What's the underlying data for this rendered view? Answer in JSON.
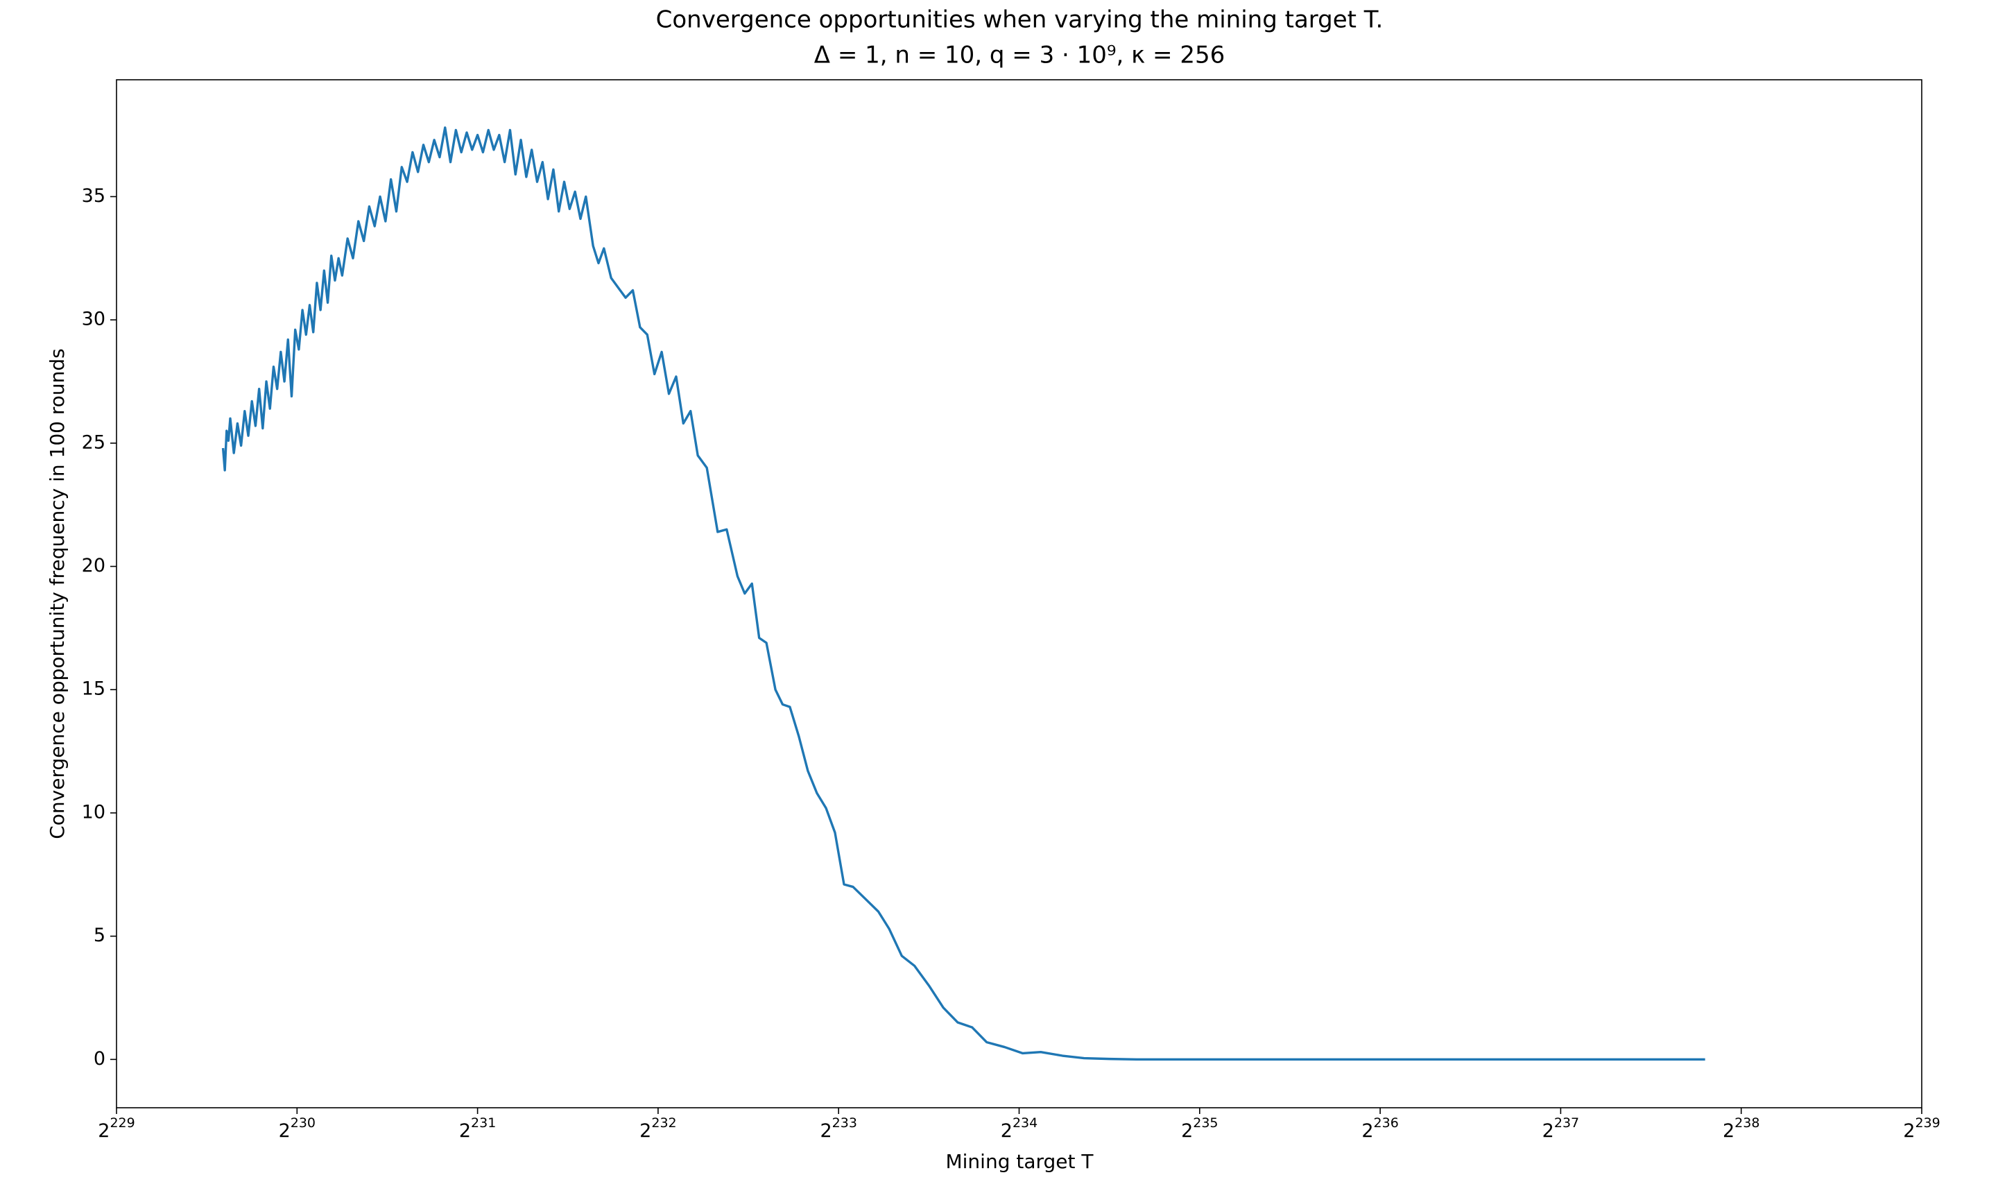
{
  "chart_data": {
    "type": "line",
    "title": "Convergence opportunities when varying the mining target T.",
    "subtitle": "Δ = 1, n = 10, q = 3 · 10⁹, κ = 256",
    "xlabel": "Mining target T",
    "ylabel": "Convergence opportunity frequency in 100 rounds",
    "xscale": "log2",
    "xlim": [
      229,
      239
    ],
    "ylim": [
      -1.96,
      39.74
    ],
    "xticks": [
      {
        "value": 229,
        "label": [
          "2",
          "229"
        ]
      },
      {
        "value": 230,
        "label": [
          "2",
          "230"
        ]
      },
      {
        "value": 231,
        "label": [
          "2",
          "231"
        ]
      },
      {
        "value": 232,
        "label": [
          "2",
          "232"
        ]
      },
      {
        "value": 233,
        "label": [
          "2",
          "233"
        ]
      },
      {
        "value": 234,
        "label": [
          "2",
          "234"
        ]
      },
      {
        "value": 235,
        "label": [
          "2",
          "235"
        ]
      },
      {
        "value": 236,
        "label": [
          "2",
          "236"
        ]
      },
      {
        "value": 237,
        "label": [
          "2",
          "237"
        ]
      },
      {
        "value": 238,
        "label": [
          "2",
          "238"
        ]
      },
      {
        "value": 239,
        "label": [
          "2",
          "239"
        ]
      }
    ],
    "yticks": [
      0,
      5,
      10,
      15,
      20,
      25,
      30,
      35
    ],
    "grid": false,
    "series": [
      {
        "name": "frequency",
        "color": "#1f77b4",
        "x": [
          229.59,
          229.6,
          229.61,
          229.62,
          229.63,
          229.65,
          229.67,
          229.69,
          229.71,
          229.73,
          229.75,
          229.77,
          229.79,
          229.81,
          229.83,
          229.85,
          229.87,
          229.89,
          229.91,
          229.93,
          229.95,
          229.97,
          229.99,
          230.01,
          230.03,
          230.05,
          230.07,
          230.09,
          230.11,
          230.13,
          230.15,
          230.17,
          230.19,
          230.21,
          230.23,
          230.25,
          230.28,
          230.31,
          230.34,
          230.37,
          230.4,
          230.43,
          230.46,
          230.49,
          230.52,
          230.55,
          230.58,
          230.61,
          230.64,
          230.67,
          230.7,
          230.73,
          230.76,
          230.79,
          230.82,
          230.85,
          230.88,
          230.91,
          230.94,
          230.97,
          231.0,
          231.03,
          231.06,
          231.09,
          231.12,
          231.15,
          231.18,
          231.21,
          231.24,
          231.27,
          231.3,
          231.33,
          231.36,
          231.39,
          231.42,
          231.45,
          231.48,
          231.51,
          231.54,
          231.57,
          231.6,
          231.64,
          231.67,
          231.7,
          231.74,
          231.78,
          231.82,
          231.86,
          231.9,
          231.94,
          231.98,
          232.02,
          232.06,
          232.1,
          232.14,
          232.18,
          232.22,
          232.27,
          232.33,
          232.38,
          232.44,
          232.48,
          232.52,
          232.56,
          232.6,
          232.65,
          232.69,
          232.73,
          232.78,
          232.83,
          232.88,
          232.93,
          232.98,
          233.03,
          233.08,
          233.15,
          233.22,
          233.28,
          233.35,
          233.42,
          233.5,
          233.58,
          233.66,
          233.74,
          233.82,
          233.92,
          234.02,
          234.12,
          234.24,
          234.36,
          234.5,
          234.65,
          235.0,
          235.4,
          235.8,
          236.2,
          236.6,
          237.0,
          237.4,
          237.8
        ],
        "values": [
          24.8,
          23.9,
          25.5,
          25.1,
          26.0,
          24.6,
          25.8,
          24.9,
          26.3,
          25.3,
          26.7,
          25.7,
          27.2,
          25.6,
          27.5,
          26.4,
          28.1,
          27.2,
          28.7,
          27.5,
          29.2,
          26.9,
          29.6,
          28.8,
          30.4,
          29.4,
          30.6,
          29.5,
          31.5,
          30.4,
          32.0,
          30.7,
          32.6,
          31.6,
          32.5,
          31.8,
          33.3,
          32.5,
          34.0,
          33.2,
          34.6,
          33.8,
          35.0,
          34.0,
          35.7,
          34.4,
          36.2,
          35.6,
          36.8,
          36.0,
          37.1,
          36.4,
          37.3,
          36.6,
          37.8,
          36.4,
          37.7,
          36.8,
          37.6,
          36.9,
          37.5,
          36.8,
          37.7,
          36.9,
          37.5,
          36.4,
          37.7,
          35.9,
          37.3,
          35.8,
          36.9,
          35.6,
          36.4,
          34.9,
          36.1,
          34.4,
          35.6,
          34.5,
          35.2,
          34.1,
          35.0,
          33.0,
          32.3,
          32.9,
          31.7,
          31.3,
          30.9,
          31.2,
          29.7,
          29.4,
          27.8,
          28.7,
          27.0,
          27.7,
          25.8,
          26.3,
          24.5,
          24.0,
          21.4,
          21.5,
          19.6,
          18.9,
          19.3,
          17.1,
          16.9,
          15.0,
          14.4,
          14.3,
          13.1,
          11.7,
          10.8,
          10.2,
          9.2,
          7.1,
          7.0,
          6.5,
          6.0,
          5.3,
          4.2,
          3.8,
          3.0,
          2.1,
          1.5,
          1.3,
          0.7,
          0.5,
          0.25,
          0.3,
          0.15,
          0.05,
          0.02,
          0,
          0,
          0,
          0,
          0,
          0,
          0,
          0,
          0
        ]
      }
    ]
  }
}
